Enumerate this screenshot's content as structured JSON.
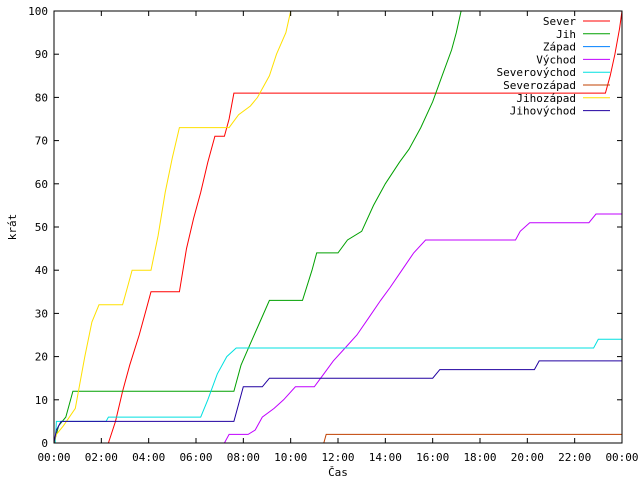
{
  "chart_data": {
    "type": "line",
    "title": "",
    "xlabel": "Čas",
    "ylabel": "krát",
    "xlim": [
      0,
      24
    ],
    "ylim": [
      0,
      100
    ],
    "x_ticks": [
      "00:00",
      "02:00",
      "04:00",
      "06:00",
      "08:00",
      "10:00",
      "12:00",
      "14:00",
      "16:00",
      "18:00",
      "20:00",
      "22:00",
      "00:00"
    ],
    "y_ticks": [
      0,
      10,
      20,
      30,
      40,
      50,
      60,
      70,
      80,
      90,
      100
    ],
    "grid": false,
    "legend_position": "top-right",
    "series": [
      {
        "name": "Sever",
        "color": "#ff0000",
        "points": [
          [
            0,
            0
          ],
          [
            2.3,
            0
          ],
          [
            2.6,
            5
          ],
          [
            2.9,
            12
          ],
          [
            3.2,
            18
          ],
          [
            3.6,
            25
          ],
          [
            3.9,
            31
          ],
          [
            4.1,
            35
          ],
          [
            5.3,
            35
          ],
          [
            5.6,
            45
          ],
          [
            5.9,
            52
          ],
          [
            6.2,
            58
          ],
          [
            6.5,
            65
          ],
          [
            6.8,
            71
          ],
          [
            7.2,
            71
          ],
          [
            7.4,
            75
          ],
          [
            7.6,
            81
          ],
          [
            23.3,
            81
          ],
          [
            23.5,
            85
          ],
          [
            23.7,
            90
          ],
          [
            23.9,
            96
          ],
          [
            24,
            100
          ]
        ]
      },
      {
        "name": "Jih",
        "color": "#00a000",
        "points": [
          [
            0,
            0
          ],
          [
            0.2,
            4
          ],
          [
            0.5,
            6
          ],
          [
            0.8,
            12
          ],
          [
            7.6,
            12
          ],
          [
            7.9,
            18
          ],
          [
            8.3,
            23
          ],
          [
            8.7,
            28
          ],
          [
            9.1,
            33
          ],
          [
            10.5,
            33
          ],
          [
            10.9,
            40
          ],
          [
            11.1,
            44
          ],
          [
            12.0,
            44
          ],
          [
            12.4,
            47
          ],
          [
            13.0,
            49
          ],
          [
            13.5,
            55
          ],
          [
            14.0,
            60
          ],
          [
            14.6,
            65
          ],
          [
            15.0,
            68
          ],
          [
            15.5,
            73
          ],
          [
            16.0,
            79
          ],
          [
            16.4,
            85
          ],
          [
            16.8,
            91
          ],
          [
            17.0,
            95
          ],
          [
            17.2,
            100
          ]
        ]
      },
      {
        "name": "Západ",
        "color": "#0080ff",
        "points": [
          [
            0,
            0
          ]
        ]
      },
      {
        "name": "Východ",
        "color": "#c000ff",
        "points": [
          [
            0,
            0
          ],
          [
            7.2,
            0
          ],
          [
            7.4,
            2
          ],
          [
            8.2,
            2
          ],
          [
            8.5,
            3
          ],
          [
            8.8,
            6
          ],
          [
            9.3,
            8
          ],
          [
            9.7,
            10
          ],
          [
            10.2,
            13
          ],
          [
            11.0,
            13
          ],
          [
            11.4,
            16
          ],
          [
            11.8,
            19
          ],
          [
            12.3,
            22
          ],
          [
            12.8,
            25
          ],
          [
            13.3,
            29
          ],
          [
            13.8,
            33
          ],
          [
            14.2,
            36
          ],
          [
            14.7,
            40
          ],
          [
            15.2,
            44
          ],
          [
            15.7,
            47
          ],
          [
            19.5,
            47
          ],
          [
            19.7,
            49
          ],
          [
            20.1,
            51
          ],
          [
            22.6,
            51
          ],
          [
            22.9,
            53
          ],
          [
            24,
            53
          ]
        ]
      },
      {
        "name": "Severovýchod",
        "color": "#00e0e0",
        "points": [
          [
            0,
            0
          ],
          [
            0.05,
            0
          ],
          [
            0.1,
            5
          ],
          [
            2.2,
            5
          ],
          [
            2.3,
            6
          ],
          [
            6.2,
            6
          ],
          [
            6.5,
            10
          ],
          [
            6.9,
            16
          ],
          [
            7.3,
            20
          ],
          [
            7.7,
            22
          ],
          [
            22.8,
            22
          ],
          [
            23.0,
            24
          ],
          [
            24,
            24
          ]
        ]
      },
      {
        "name": "Severozápad",
        "color": "#c04000",
        "points": [
          [
            0,
            0
          ],
          [
            11.4,
            0
          ],
          [
            11.5,
            2
          ],
          [
            24,
            2
          ]
        ]
      },
      {
        "name": "Jihozápad",
        "color": "#ffe000",
        "points": [
          [
            0,
            0
          ],
          [
            0.1,
            2
          ],
          [
            0.4,
            4
          ],
          [
            0.9,
            8
          ],
          [
            1.3,
            20
          ],
          [
            1.6,
            28
          ],
          [
            1.9,
            32
          ],
          [
            2.9,
            32
          ],
          [
            3.1,
            36
          ],
          [
            3.3,
            40
          ],
          [
            4.1,
            40
          ],
          [
            4.4,
            48
          ],
          [
            4.7,
            58
          ],
          [
            5.0,
            66
          ],
          [
            5.3,
            73
          ],
          [
            7.4,
            73
          ],
          [
            7.8,
            76
          ],
          [
            8.3,
            78
          ],
          [
            8.6,
            80
          ],
          [
            9.1,
            85
          ],
          [
            9.4,
            90
          ],
          [
            9.8,
            95
          ],
          [
            10.0,
            100
          ]
        ]
      },
      {
        "name": "Jihovýchod",
        "color": "#2000a0",
        "points": [
          [
            0,
            0
          ],
          [
            0.1,
            3
          ],
          [
            0.3,
            5
          ],
          [
            7.6,
            5
          ],
          [
            7.8,
            9
          ],
          [
            8.0,
            13
          ],
          [
            8.8,
            13
          ],
          [
            9.1,
            15
          ],
          [
            16.0,
            15
          ],
          [
            16.3,
            17
          ],
          [
            20.3,
            17
          ],
          [
            20.5,
            19
          ],
          [
            24,
            19
          ]
        ]
      }
    ]
  }
}
